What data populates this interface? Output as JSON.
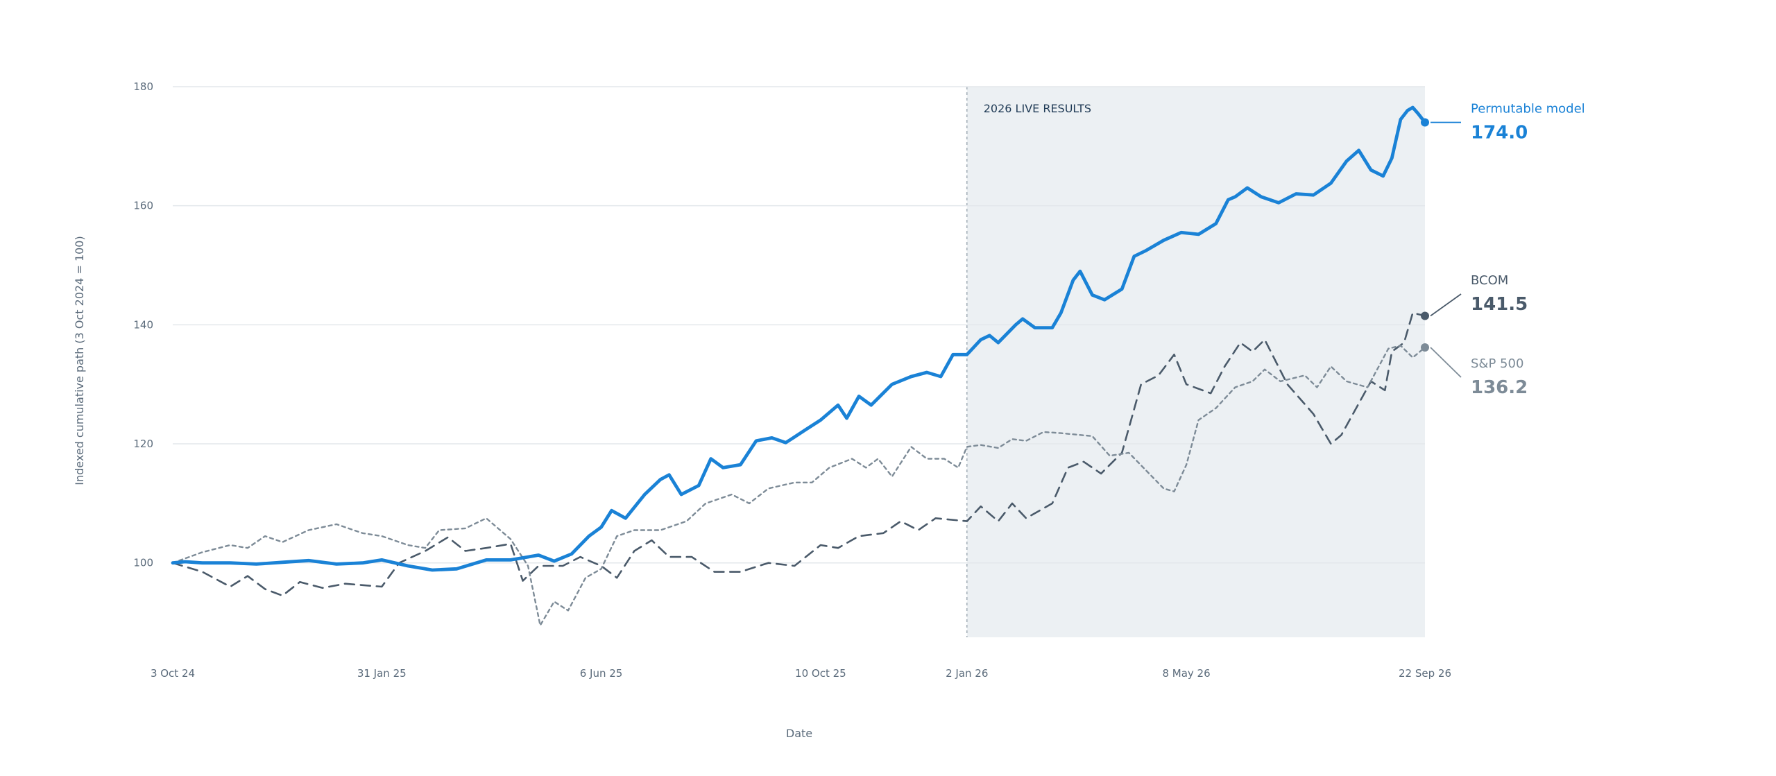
{
  "chart_data": {
    "type": "line",
    "xlabel": "Date",
    "ylabel": "Indexed cumulative path (3 Oct 2024 = 100)",
    "ylim": [
      87.5,
      180
    ],
    "xlim": [
      "2024-10-03",
      "2026-09-22"
    ],
    "y_ticks": [
      100,
      120,
      140,
      160,
      180
    ],
    "x_ticks": [
      {
        "date": "2024-10-03",
        "label": "3 Oct 24"
      },
      {
        "date": "2025-01-31",
        "label": "31 Jan 25"
      },
      {
        "date": "2025-06-06",
        "label": "6 Jun 25"
      },
      {
        "date": "2025-10-10",
        "label": "10 Oct 25"
      },
      {
        "date": "2026-01-02",
        "label": "2 Jan 26"
      },
      {
        "date": "2026-05-08",
        "label": "8 May 26"
      },
      {
        "date": "2026-09-22",
        "label": "22 Sep 26"
      }
    ],
    "grid": true,
    "shaded_region": {
      "from": "2026-01-02",
      "to": "2026-09-22",
      "label": "2026 LIVE RESULTS",
      "color": "#ecf0f3"
    },
    "series": [
      {
        "name": "Permutable model",
        "end_label": "174.0",
        "color": "#1a82d6",
        "style": "solid",
        "points": [
          [
            "2024-10-03",
            100.0
          ],
          [
            "2024-10-10",
            100.2
          ],
          [
            "2024-10-20",
            100.0
          ],
          [
            "2024-11-05",
            100.0
          ],
          [
            "2024-11-20",
            99.8
          ],
          [
            "2024-12-05",
            100.1
          ],
          [
            "2024-12-20",
            100.4
          ],
          [
            "2025-01-05",
            99.8
          ],
          [
            "2025-01-20",
            100.0
          ],
          [
            "2025-01-31",
            100.5
          ],
          [
            "2025-02-15",
            99.5
          ],
          [
            "2025-03-01",
            98.8
          ],
          [
            "2025-03-15",
            99.0
          ],
          [
            "2025-04-01",
            100.5
          ],
          [
            "2025-04-15",
            100.5
          ],
          [
            "2025-05-01",
            101.3
          ],
          [
            "2025-05-10",
            100.3
          ],
          [
            "2025-05-20",
            101.5
          ],
          [
            "2025-05-30",
            104.5
          ],
          [
            "2025-06-06",
            106.0
          ],
          [
            "2025-06-12",
            108.8
          ],
          [
            "2025-06-20",
            107.5
          ],
          [
            "2025-07-01",
            111.5
          ],
          [
            "2025-07-10",
            114.0
          ],
          [
            "2025-07-15",
            114.8
          ],
          [
            "2025-07-22",
            111.5
          ],
          [
            "2025-08-01",
            113.0
          ],
          [
            "2025-08-08",
            117.5
          ],
          [
            "2025-08-15",
            116.0
          ],
          [
            "2025-08-25",
            116.5
          ],
          [
            "2025-09-03",
            120.5
          ],
          [
            "2025-09-12",
            121.0
          ],
          [
            "2025-09-20",
            120.2
          ],
          [
            "2025-10-01",
            122.3
          ],
          [
            "2025-10-10",
            124.0
          ],
          [
            "2025-10-20",
            126.5
          ],
          [
            "2025-10-25",
            124.3
          ],
          [
            "2025-11-01",
            128.0
          ],
          [
            "2025-11-08",
            126.5
          ],
          [
            "2025-11-20",
            130.0
          ],
          [
            "2025-12-01",
            131.3
          ],
          [
            "2025-12-10",
            132.0
          ],
          [
            "2025-12-18",
            131.3
          ],
          [
            "2025-12-25",
            135.0
          ],
          [
            "2026-01-02",
            135.0
          ],
          [
            "2026-01-10",
            137.5
          ],
          [
            "2026-01-15",
            138.2
          ],
          [
            "2026-01-20",
            137.0
          ],
          [
            "2026-01-30",
            140.0
          ],
          [
            "2026-02-03",
            141.0
          ],
          [
            "2026-02-10",
            139.5
          ],
          [
            "2026-02-20",
            139.5
          ],
          [
            "2026-02-25",
            142.0
          ],
          [
            "2026-03-04",
            147.5
          ],
          [
            "2026-03-08",
            149.0
          ],
          [
            "2026-03-15",
            145.0
          ],
          [
            "2026-03-22",
            144.2
          ],
          [
            "2026-04-01",
            146.0
          ],
          [
            "2026-04-08",
            151.5
          ],
          [
            "2026-04-15",
            152.5
          ],
          [
            "2026-04-25",
            154.2
          ],
          [
            "2026-05-05",
            155.5
          ],
          [
            "2026-05-15",
            155.2
          ],
          [
            "2026-05-25",
            157.0
          ],
          [
            "2026-06-01",
            161.0
          ],
          [
            "2026-06-05",
            161.5
          ],
          [
            "2026-06-12",
            163.0
          ],
          [
            "2026-06-20",
            161.5
          ],
          [
            "2026-06-30",
            160.5
          ],
          [
            "2026-07-10",
            162.0
          ],
          [
            "2026-07-20",
            161.8
          ],
          [
            "2026-07-30",
            163.8
          ],
          [
            "2026-08-08",
            167.5
          ],
          [
            "2026-08-15",
            169.3
          ],
          [
            "2026-08-22",
            166.0
          ],
          [
            "2026-08-29",
            165.0
          ],
          [
            "2026-09-03",
            168.0
          ],
          [
            "2026-09-08",
            174.5
          ],
          [
            "2026-09-12",
            176.0
          ],
          [
            "2026-09-15",
            176.5
          ],
          [
            "2026-09-18",
            175.5
          ],
          [
            "2026-09-22",
            174.0
          ]
        ]
      },
      {
        "name": "BCOM",
        "end_label": "141.5",
        "color": "#4a5a6a",
        "style": "dashed",
        "points": [
          [
            "2024-10-03",
            100.0
          ],
          [
            "2024-10-20",
            98.5
          ],
          [
            "2024-11-05",
            96.0
          ],
          [
            "2024-11-15",
            97.8
          ],
          [
            "2024-11-25",
            95.6
          ],
          [
            "2024-12-05",
            94.5
          ],
          [
            "2024-12-15",
            96.8
          ],
          [
            "2024-12-28",
            95.8
          ],
          [
            "2025-01-10",
            96.5
          ],
          [
            "2025-01-31",
            96.0
          ],
          [
            "2025-02-10",
            100.0
          ],
          [
            "2025-02-25",
            102.0
          ],
          [
            "2025-03-10",
            104.3
          ],
          [
            "2025-03-20",
            102.0
          ],
          [
            "2025-04-01",
            102.5
          ],
          [
            "2025-04-15",
            103.2
          ],
          [
            "2025-04-22",
            97.0
          ],
          [
            "2025-05-01",
            99.5
          ],
          [
            "2025-05-15",
            99.5
          ],
          [
            "2025-05-25",
            101.0
          ],
          [
            "2025-06-06",
            99.5
          ],
          [
            "2025-06-15",
            97.5
          ],
          [
            "2025-06-25",
            102.0
          ],
          [
            "2025-07-05",
            103.8
          ],
          [
            "2025-07-15",
            101.0
          ],
          [
            "2025-07-28",
            101.0
          ],
          [
            "2025-08-10",
            98.5
          ],
          [
            "2025-08-25",
            98.5
          ],
          [
            "2025-09-10",
            100.0
          ],
          [
            "2025-09-25",
            99.5
          ],
          [
            "2025-10-10",
            103.0
          ],
          [
            "2025-10-20",
            102.5
          ],
          [
            "2025-11-01",
            104.5
          ],
          [
            "2025-11-15",
            105.0
          ],
          [
            "2025-11-25",
            107.0
          ],
          [
            "2025-12-05",
            105.5
          ],
          [
            "2025-12-15",
            107.5
          ],
          [
            "2026-01-02",
            107.0
          ],
          [
            "2026-01-10",
            109.5
          ],
          [
            "2026-01-20",
            107.0
          ],
          [
            "2026-01-28",
            110.0
          ],
          [
            "2026-02-05",
            107.5
          ],
          [
            "2026-02-20",
            110.0
          ],
          [
            "2026-03-01",
            116.0
          ],
          [
            "2026-03-10",
            117.0
          ],
          [
            "2026-03-20",
            115.0
          ],
          [
            "2026-04-01",
            118.5
          ],
          [
            "2026-04-12",
            130.0
          ],
          [
            "2026-04-22",
            131.5
          ],
          [
            "2026-05-01",
            135.0
          ],
          [
            "2026-05-08",
            130.0
          ],
          [
            "2026-05-22",
            128.5
          ],
          [
            "2026-05-30",
            133.0
          ],
          [
            "2026-06-08",
            137.0
          ],
          [
            "2026-06-15",
            135.5
          ],
          [
            "2026-06-22",
            137.5
          ],
          [
            "2026-07-05",
            130.0
          ],
          [
            "2026-07-20",
            125.0
          ],
          [
            "2026-07-30",
            120.0
          ],
          [
            "2026-08-05",
            121.5
          ],
          [
            "2026-08-22",
            130.5
          ],
          [
            "2026-08-30",
            129.0
          ],
          [
            "2026-09-03",
            135.5
          ],
          [
            "2026-09-10",
            137.0
          ],
          [
            "2026-09-15",
            142.0
          ],
          [
            "2026-09-22",
            141.5
          ]
        ]
      },
      {
        "name": "S&P 500",
        "end_label": "136.2",
        "color": "#7d8b97",
        "style": "dotted",
        "points": [
          [
            "2024-10-03",
            100.0
          ],
          [
            "2024-10-20",
            101.8
          ],
          [
            "2024-11-05",
            103.0
          ],
          [
            "2024-11-15",
            102.5
          ],
          [
            "2024-11-25",
            104.5
          ],
          [
            "2024-12-05",
            103.5
          ],
          [
            "2024-12-20",
            105.5
          ],
          [
            "2025-01-05",
            106.5
          ],
          [
            "2025-01-20",
            105.0
          ],
          [
            "2025-01-31",
            104.5
          ],
          [
            "2025-02-15",
            103.0
          ],
          [
            "2025-02-25",
            102.5
          ],
          [
            "2025-03-05",
            105.5
          ],
          [
            "2025-03-20",
            105.8
          ],
          [
            "2025-04-01",
            107.5
          ],
          [
            "2025-04-15",
            104.0
          ],
          [
            "2025-04-25",
            99.5
          ],
          [
            "2025-05-02",
            89.5
          ],
          [
            "2025-05-10",
            93.5
          ],
          [
            "2025-05-18",
            92.0
          ],
          [
            "2025-05-28",
            97.5
          ],
          [
            "2025-06-06",
            99.0
          ],
          [
            "2025-06-15",
            104.5
          ],
          [
            "2025-06-25",
            105.5
          ],
          [
            "2025-07-10",
            105.5
          ],
          [
            "2025-07-25",
            107.0
          ],
          [
            "2025-08-05",
            110.0
          ],
          [
            "2025-08-20",
            111.5
          ],
          [
            "2025-08-30",
            110.0
          ],
          [
            "2025-09-10",
            112.5
          ],
          [
            "2025-09-25",
            113.5
          ],
          [
            "2025-10-05",
            113.5
          ],
          [
            "2025-10-15",
            116.0
          ],
          [
            "2025-10-28",
            117.5
          ],
          [
            "2025-11-05",
            116.0
          ],
          [
            "2025-11-12",
            117.5
          ],
          [
            "2025-11-20",
            114.5
          ],
          [
            "2025-12-01",
            119.5
          ],
          [
            "2025-12-10",
            117.5
          ],
          [
            "2025-12-20",
            117.5
          ],
          [
            "2025-12-28",
            116.0
          ],
          [
            "2026-01-02",
            119.5
          ],
          [
            "2026-01-10",
            119.8
          ],
          [
            "2026-01-20",
            119.3
          ],
          [
            "2026-01-28",
            120.8
          ],
          [
            "2026-02-05",
            120.5
          ],
          [
            "2026-02-15",
            122.0
          ],
          [
            "2026-02-25",
            121.8
          ],
          [
            "2026-03-15",
            121.3
          ],
          [
            "2026-03-25",
            118.0
          ],
          [
            "2026-04-05",
            118.5
          ],
          [
            "2026-04-15",
            115.5
          ],
          [
            "2026-04-25",
            112.5
          ],
          [
            "2026-05-01",
            112.0
          ],
          [
            "2026-05-08",
            116.5
          ],
          [
            "2026-05-15",
            124.0
          ],
          [
            "2026-05-25",
            126.0
          ],
          [
            "2026-06-05",
            129.5
          ],
          [
            "2026-06-15",
            130.5
          ],
          [
            "2026-06-22",
            132.5
          ],
          [
            "2026-07-01",
            130.5
          ],
          [
            "2026-07-15",
            131.5
          ],
          [
            "2026-07-22",
            129.5
          ],
          [
            "2026-07-30",
            133.0
          ],
          [
            "2026-08-08",
            130.5
          ],
          [
            "2026-08-20",
            129.5
          ],
          [
            "2026-09-01",
            136.0
          ],
          [
            "2026-09-08",
            136.5
          ],
          [
            "2026-09-15",
            134.5
          ],
          [
            "2026-09-22",
            136.2
          ]
        ]
      }
    ]
  }
}
